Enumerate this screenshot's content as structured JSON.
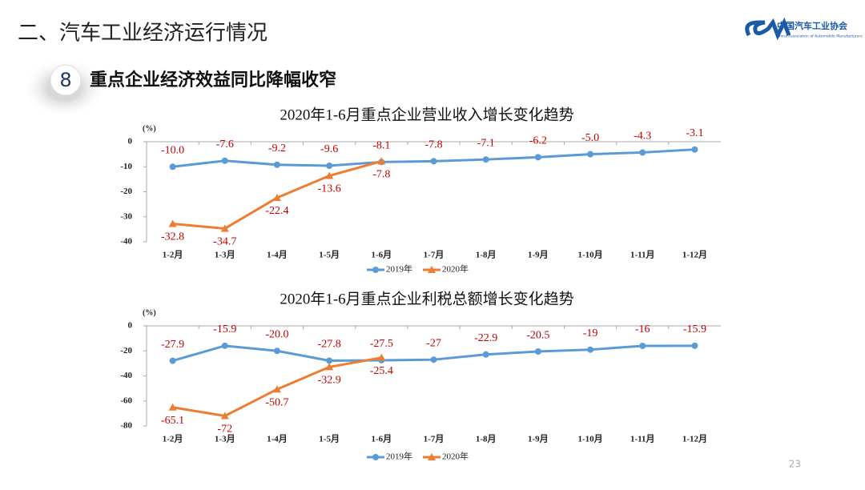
{
  "header": {
    "title": "二、汽车工业经济运行情况",
    "logo_cn": "中国汽车工业协会",
    "logo_en": "China Association of Automobile Manufacturers",
    "badge": "8",
    "subtitle": "重点企业经济效益同比降幅收窄",
    "page_number": "23"
  },
  "chart_data": [
    {
      "type": "line",
      "title": "2020年1-6月重点企业营业收入增长变化趋势",
      "y_label": "(%)",
      "categories": [
        "1-2月",
        "1-3月",
        "1-4月",
        "1-5月",
        "1-6月",
        "1-7月",
        "1-8月",
        "1-9月",
        "1-10月",
        "1-11月",
        "1-12月"
      ],
      "series": [
        {
          "name": "2019年",
          "color": "#5b9bd5",
          "marker": "circle",
          "values": [
            -10.0,
            -7.6,
            -9.2,
            -9.6,
            -8.1,
            -7.8,
            -7.1,
            -6.2,
            -5.0,
            -4.3,
            -3.1
          ],
          "value_labels": [
            "-10.0",
            "-7.6",
            "-9.2",
            "-9.6",
            "-8.1",
            "-7.8",
            "-7.1",
            "-6.2",
            "-5.0",
            "-4.3",
            "-3.1"
          ],
          "label_position": "above"
        },
        {
          "name": "2020年",
          "color": "#ed7d31",
          "marker": "triangle",
          "values": [
            -32.8,
            -34.7,
            -22.4,
            -13.6,
            -7.8,
            null,
            null,
            null,
            null,
            null,
            null
          ],
          "value_labels": [
            "-32.8",
            "-34.7",
            "-22.4",
            "-13.6",
            "-7.8",
            null,
            null,
            null,
            null,
            null,
            null
          ],
          "label_position": "below"
        }
      ],
      "ylim": [
        -40,
        0
      ],
      "yticks": [
        -40,
        -30,
        -20,
        -10,
        0
      ],
      "label_color": "#c00000",
      "legend": "bottom"
    },
    {
      "type": "line",
      "title": "2020年1-6月重点企业利税总额增长变化趋势",
      "y_label": "(%)",
      "categories": [
        "1-2月",
        "1-3月",
        "1-4月",
        "1-5月",
        "1-6月",
        "1-7月",
        "1-8月",
        "1-9月",
        "1-10月",
        "1-11月",
        "1-12月"
      ],
      "series": [
        {
          "name": "2019年",
          "color": "#5b9bd5",
          "marker": "circle",
          "values": [
            -27.9,
            -15.9,
            -20.0,
            -27.8,
            -27.5,
            -27,
            -22.9,
            -20.5,
            -19,
            -16,
            -15.9
          ],
          "value_labels": [
            "-27.9",
            "-15.9",
            "-20.0",
            "-27.8",
            "-27.5",
            "-27",
            "-22.9",
            "-20.5",
            "-19",
            "-16",
            "-15.9"
          ],
          "label_position": "above"
        },
        {
          "name": "2020年",
          "color": "#ed7d31",
          "marker": "triangle",
          "values": [
            -65.1,
            -72,
            -50.7,
            -32.9,
            -25.4,
            null,
            null,
            null,
            null,
            null,
            null
          ],
          "value_labels": [
            "-65.1",
            "-72",
            "-50.7",
            "-32.9",
            "-25.4",
            null,
            null,
            null,
            null,
            null,
            null
          ],
          "label_position": "below"
        }
      ],
      "ylim": [
        -80,
        0
      ],
      "yticks": [
        -80,
        -60,
        -40,
        -20,
        0
      ],
      "label_color": "#c00000",
      "legend": "bottom"
    }
  ]
}
